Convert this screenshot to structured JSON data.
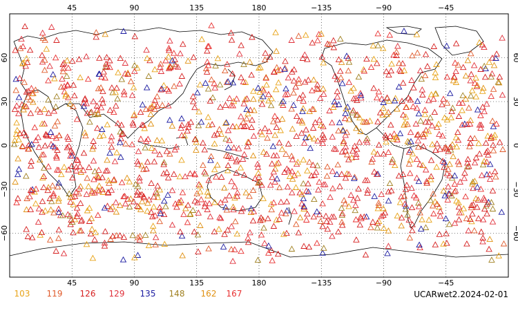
{
  "map": {
    "top_ticks": [
      "45",
      "90",
      "135",
      "180",
      "−135",
      "−90",
      "−45"
    ],
    "bottom_ticks": [
      "45",
      "90",
      "135",
      "180",
      "−135",
      "−90",
      "−45"
    ],
    "left_ticks": [
      "60",
      "30",
      "0",
      "−30",
      "−60"
    ],
    "right_ticks": [
      "60",
      "30",
      "0",
      "−30",
      "−60"
    ],
    "lat_values": [
      60,
      30,
      0,
      -30,
      -60
    ],
    "grid": true,
    "center_longitude": 180
  },
  "legend": {
    "items": [
      {
        "label": "103",
        "color": "#e8a317"
      },
      {
        "label": "119",
        "color": "#e05a2a"
      },
      {
        "label": "126",
        "color": "#d62020"
      },
      {
        "label": "129",
        "color": "#e0303a"
      },
      {
        "label": "135",
        "color": "#1a1aa0"
      },
      {
        "label": "148",
        "color": "#a08020"
      },
      {
        "label": "162",
        "color": "#e09010"
      },
      {
        "label": "167",
        "color": "#e83030"
      }
    ]
  },
  "source_label": "UCARwet2.2024-02-01"
}
